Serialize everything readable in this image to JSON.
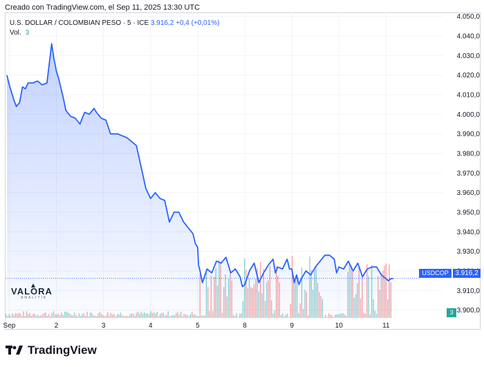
{
  "header": {
    "caption": "Creado con TradingView.com, el Sep 11, 2025 13:30 UTC"
  },
  "legend": {
    "symbol_desc": "U.S. DOLLAR / COLOMBIAN PESO · 5 · ICE",
    "last_price": "3.916,2",
    "change": "+0,4 (+0,01%)",
    "vol_label": "Vol.",
    "vol_value": "3"
  },
  "tags": {
    "symbol": "USDCOP",
    "price": "3.916,2",
    "volume": "3"
  },
  "watermark": {
    "name": "VALORA",
    "sub": "ANALITIK"
  },
  "footer": {
    "brand": "TradingView"
  },
  "colors": {
    "line": "#2962ff",
    "vol_up": "#26a69a",
    "vol_down": "#ef5350",
    "grid": "#f0f3fa"
  },
  "chart_data": {
    "type": "area",
    "title": "U.S. DOLLAR / COLOMBIAN PESO · 5 · ICE",
    "xlabel": "",
    "ylabel": "",
    "ylim": [
      3896,
      4052
    ],
    "y_ticks": [
      "4.050,0",
      "4.040,0",
      "4.030,0",
      "4.020,0",
      "4.010,0",
      "4.000,0",
      "3.990,0",
      "3.980,0",
      "3.970,0",
      "3.960,0",
      "3.950,0",
      "3.940,0",
      "3.930,0",
      "3.920,0",
      "3.910,0",
      "3.900,0"
    ],
    "y_tick_values": [
      4050,
      4040,
      4030,
      4020,
      4010,
      4000,
      3990,
      3980,
      3970,
      3960,
      3950,
      3940,
      3930,
      3920,
      3910,
      3900
    ],
    "x_ticks": [
      "Sep",
      "2",
      "3",
      "4",
      "5",
      "8",
      "9",
      "10",
      "11"
    ],
    "x_tick_pos": [
      0,
      1,
      2,
      3,
      4,
      5,
      6,
      7,
      8
    ],
    "xlim": [
      -0.08,
      8.7
    ],
    "series": [
      {
        "name": "USDCOP",
        "x": [
          -0.05,
          0.0,
          0.05,
          0.1,
          0.15,
          0.22,
          0.28,
          0.34,
          0.4,
          0.5,
          0.6,
          0.7,
          0.8,
          0.9,
          0.95,
          1.0,
          1.05,
          1.1,
          1.15,
          1.2,
          1.3,
          1.4,
          1.5,
          1.6,
          1.7,
          1.8,
          1.85,
          1.95,
          2.05,
          2.15,
          2.2,
          2.3,
          2.5,
          2.7,
          2.9,
          3.0,
          3.1,
          3.2,
          3.3,
          3.4,
          3.5,
          3.6,
          3.7,
          3.8,
          3.9,
          3.95,
          4.0,
          4.02,
          4.05,
          4.1,
          4.2,
          4.3,
          4.4,
          4.5,
          4.6,
          4.7,
          4.8,
          4.9,
          4.95,
          5.0,
          5.1,
          5.2,
          5.25,
          5.3,
          5.4,
          5.5,
          5.6,
          5.65,
          5.7,
          5.8,
          5.9,
          5.95,
          6.0,
          6.05,
          6.1,
          6.15,
          6.2,
          6.3,
          6.4,
          6.5,
          6.6,
          6.7,
          6.8,
          6.9,
          6.95,
          7.0,
          7.1,
          7.2,
          7.3,
          7.4,
          7.5,
          7.6,
          7.7,
          7.8,
          7.9,
          8.0,
          8.05,
          8.1,
          8.15
        ],
        "values": [
          4020,
          4015,
          4011,
          4007,
          4004,
          4006,
          4014,
          4013,
          4016,
          4016,
          4017,
          4015,
          4016,
          4036,
          4028,
          4022,
          4018,
          4013,
          4008,
          4002,
          3999,
          3998,
          3995,
          4001,
          4000,
          4003,
          4001,
          3998,
          3997,
          3990,
          3990,
          3990,
          3988,
          3984,
          3962,
          3957,
          3960,
          3957,
          3956,
          3945,
          3950,
          3950,
          3945,
          3942,
          3939,
          3934,
          3932,
          3923,
          3920,
          3914,
          3921,
          3919,
          3925,
          3924,
          3927,
          3919,
          3921,
          3917,
          3912,
          3913,
          3920,
          3924,
          3919,
          3914,
          3919,
          3923,
          3926,
          3919,
          3922,
          3921,
          3926,
          3921,
          3921,
          3914,
          3918,
          3913,
          3916,
          3920,
          3918,
          3922,
          3925,
          3928,
          3928,
          3926,
          3919,
          3922,
          3921,
          3925,
          3920,
          3924,
          3917,
          3921,
          3922,
          3922,
          3918,
          3916,
          3915,
          3916,
          3916.2
        ]
      }
    ]
  }
}
